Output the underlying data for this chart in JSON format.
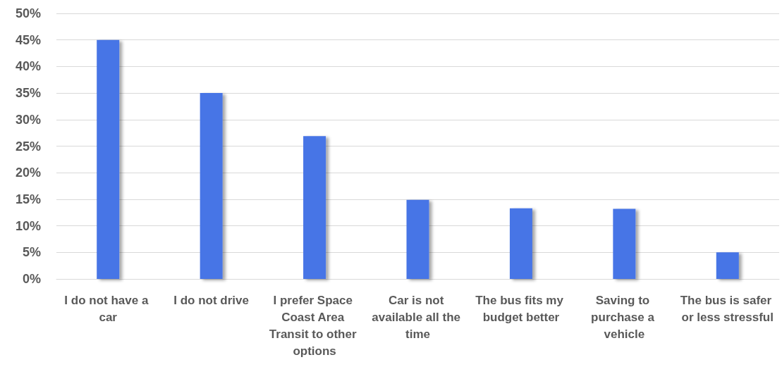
{
  "chart_data": {
    "type": "bar",
    "categories": [
      "I do not have a car",
      "I do not drive",
      "I prefer Space Coast Area Transit to other options",
      "Car is not available all the time",
      "The bus fits my budget better",
      "Saving to purchase a vehicle",
      "The bus is safer or less stressful"
    ],
    "values": [
      45,
      35,
      26.9,
      14.9,
      13.3,
      13.2,
      5.0
    ],
    "color": "#4774e6",
    "ylim": [
      0,
      50
    ],
    "yticks": [
      {
        "value": 0,
        "label": "0%"
      },
      {
        "value": 5,
        "label": "5%"
      },
      {
        "value": 10,
        "label": "10%"
      },
      {
        "value": 15,
        "label": "15%"
      },
      {
        "value": 20,
        "label": "20%"
      },
      {
        "value": 25,
        "label": "25%"
      },
      {
        "value": 30,
        "label": "30%"
      },
      {
        "value": 35,
        "label": "35%"
      },
      {
        "value": 40,
        "label": "40%"
      },
      {
        "value": 45,
        "label": "45%"
      },
      {
        "value": 50,
        "label": "50%"
      }
    ],
    "grid": true
  }
}
